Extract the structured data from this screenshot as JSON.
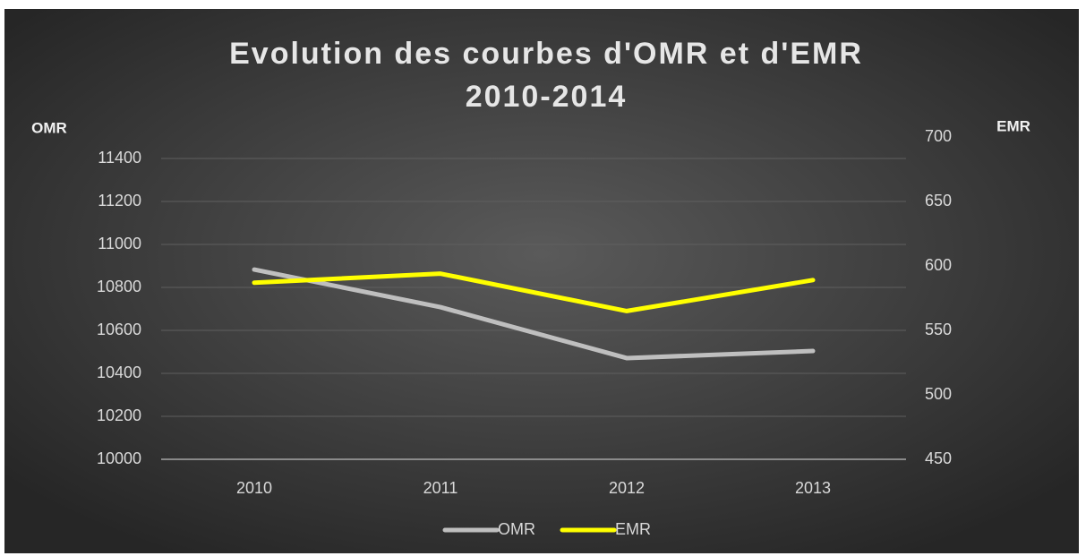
{
  "chart_data": {
    "type": "line",
    "title": [
      "Evolution des courbes d'OMR et d'EMR",
      "2010-2014"
    ],
    "y_label": "OMR",
    "y2_label": "EMR",
    "categories": [
      "2010",
      "2011",
      "2012",
      "2013"
    ],
    "series": [
      {
        "name": "OMR",
        "color": "#bfbfbf",
        "values": [
          10883,
          10708,
          10471,
          10504
        ]
      },
      {
        "name": "EMR",
        "color": "#ffff00",
        "axis": "y2",
        "values": [
          587,
          594,
          565,
          589
        ]
      }
    ],
    "ylim": [
      10000,
      11500
    ],
    "yticks": [
      10000,
      10200,
      10400,
      10600,
      10800,
      11000,
      11200,
      11400
    ],
    "y2lim": [
      450,
      700
    ],
    "y2ticks": [
      450,
      500,
      550,
      600,
      650,
      700
    ],
    "grid": true,
    "legend": "bottom"
  }
}
